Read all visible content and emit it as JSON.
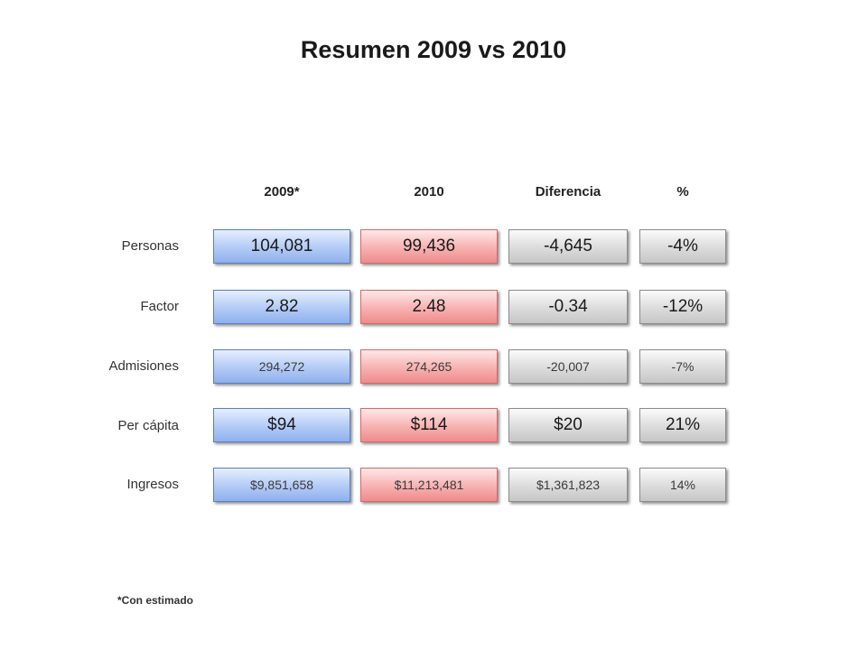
{
  "title": "Resumen 2009 vs 2010",
  "columns": [
    "2009*",
    "2010",
    "Diferencia",
    "%"
  ],
  "rows": [
    {
      "label": "Personas",
      "v2009": "104,081",
      "v2010": "99,436",
      "diff": "-4,645",
      "pct": "-4%"
    },
    {
      "label": "Factor",
      "v2009": "2.82",
      "v2010": "2.48",
      "diff": "-0.34",
      "pct": "-12%"
    },
    {
      "label": "Admisiones",
      "v2009": "294,272",
      "v2010": "274,265",
      "diff": "-20,007",
      "pct": "-7%"
    },
    {
      "label": "Per cápita",
      "v2009": "$94",
      "v2010": "$114",
      "diff": "$20",
      "pct": "21%"
    },
    {
      "label": "Ingresos",
      "v2009": "$9,851,658",
      "v2010": "$11,213,481",
      "diff": "$1,361,823",
      "pct": "14%"
    }
  ],
  "footnote": "*Con estimado",
  "colors": {
    "col_2009": "#b6cdf6",
    "col_2010": "#f8b5b5",
    "col_diff": "#dedede"
  }
}
